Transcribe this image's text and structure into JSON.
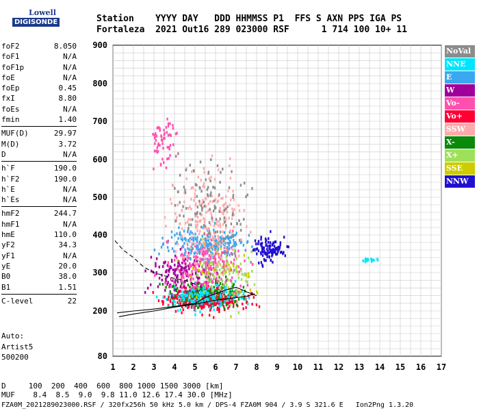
{
  "logo": {
    "top": "Lowell",
    "bottom": "DIGISONDE"
  },
  "header": {
    "line1": "Station    YYYY DAY   DDD HHMMSS P1  FFS S AXN PPS IGA PS",
    "line2": "Fortaleza  2021 Out16 289 023000 RSF      1 714 100 10+ 11"
  },
  "params": {
    "group1": [
      {
        "name": "foF2",
        "value": "8.050"
      },
      {
        "name": "foF1",
        "value": "N/A"
      },
      {
        "name": "foF1p",
        "value": "N/A"
      },
      {
        "name": "foE",
        "value": "N/A"
      },
      {
        "name": "foEp",
        "value": "0.45"
      },
      {
        "name": "fxI",
        "value": "8.80"
      },
      {
        "name": "foEs",
        "value": "N/A"
      },
      {
        "name": "fmin",
        "value": "1.40"
      }
    ],
    "group2": [
      {
        "name": "MUF(D)",
        "value": "29.97"
      },
      {
        "name": "M(D)",
        "value": "3.72"
      },
      {
        "name": "D",
        "value": "N/A"
      }
    ],
    "group3": [
      {
        "name": "h`F",
        "value": "190.0"
      },
      {
        "name": "h`F2",
        "value": "190.0"
      },
      {
        "name": "h`E",
        "value": "N/A"
      },
      {
        "name": "h`Es",
        "value": "N/A"
      }
    ],
    "group4": [
      {
        "name": "hmF2",
        "value": "244.7"
      },
      {
        "name": "hmF1",
        "value": "N/A"
      },
      {
        "name": "hmE",
        "value": "110.0"
      },
      {
        "name": "yF2",
        "value": "34.3"
      },
      {
        "name": "yF1",
        "value": "N/A"
      },
      {
        "name": "yE",
        "value": "20.0"
      },
      {
        "name": "B0",
        "value": "38.0"
      },
      {
        "name": "B1",
        "value": "1.51"
      }
    ],
    "group5": [
      {
        "name": "C-level",
        "value": "22"
      }
    ]
  },
  "auto": {
    "line1": "Auto:",
    "line2": "Artist5",
    "line3": "500200"
  },
  "legend": [
    {
      "label": "NoVal",
      "color": "#8c8c8c"
    },
    {
      "label": "NNE",
      "color": "#00e5ff"
    },
    {
      "label": "E",
      "color": "#3aa8f0"
    },
    {
      "label": "W",
      "color": "#a0009a"
    },
    {
      "label": "Vo-",
      "color": "#ff4fb0"
    },
    {
      "label": "Vo+",
      "color": "#ff0033"
    },
    {
      "label": "SSW",
      "color": "#ffaaaa"
    },
    {
      "label": "X-",
      "color": "#0a8a0a"
    },
    {
      "label": "X+",
      "color": "#9fe05a"
    },
    {
      "label": "SSE",
      "color": "#cccc00"
    },
    {
      "label": "NNW",
      "color": "#2010d0"
    }
  ],
  "footer": {
    "d_row": "D     100  200  400  600  800 1000 1500 3000 [km]",
    "muf_row": "MUF    8.4  8.5  9.0  9.8 11.0 12.6 17.4 30.0 [MHz]",
    "filename": "FZA0M_2021289023000.RSF / 320fx256h 50 kHz 5.0 km / DPS-4 FZA0M 904 / 3.9 S 321.6 E   Ion2Png 1.3.20"
  },
  "chart_data": {
    "type": "scatter",
    "title": "",
    "xlabel": "",
    "ylabel": "",
    "xlim": [
      1,
      17
    ],
    "ylim": [
      80,
      900
    ],
    "x_ticks": [
      1,
      2,
      3,
      4,
      5,
      6,
      7,
      8,
      9,
      10,
      11,
      12,
      13,
      14,
      15,
      16,
      17
    ],
    "y_ticks": [
      80,
      200,
      300,
      400,
      500,
      600,
      700,
      800,
      900
    ],
    "grid": true,
    "traces": [
      {
        "name": "profile",
        "style": "solid",
        "x": [
          1.2,
          2,
          3,
          4,
          5,
          5.5,
          6,
          6.5,
          7,
          7.5,
          8
        ],
        "y": [
          195,
          200,
          205,
          212,
          220,
          235,
          245,
          255,
          262,
          250,
          240
        ]
      },
      {
        "name": "lower",
        "style": "solid",
        "x": [
          1.3,
          2,
          3,
          4,
          5,
          6,
          7,
          7.5,
          7.9
        ],
        "y": [
          185,
          192,
          200,
          210,
          218,
          228,
          235,
          238,
          245
        ]
      },
      {
        "name": "dashed",
        "style": "dashed",
        "x": [
          1.1,
          1.5,
          2,
          2.5,
          3,
          3.5,
          4,
          4.5,
          5
        ],
        "y": [
          385,
          360,
          340,
          315,
          300,
          292,
          285,
          280,
          270
        ]
      }
    ],
    "clusters": [
      {
        "name": "Vo+",
        "cx": 5.5,
        "cy": 230,
        "sx": 1.6,
        "sy": 25,
        "n": 420
      },
      {
        "name": "X-",
        "cx": 5.6,
        "cy": 250,
        "sx": 1.6,
        "sy": 30,
        "n": 200
      },
      {
        "name": "NNE",
        "cx": 5.4,
        "cy": 235,
        "sx": 1.5,
        "sy": 25,
        "n": 160
      },
      {
        "name": "W",
        "cx": 4.5,
        "cy": 300,
        "sx": 1.3,
        "sy": 40,
        "n": 160
      },
      {
        "name": "Vo-",
        "cx": 5.5,
        "cy": 320,
        "sx": 1.5,
        "sy": 60,
        "n": 240
      },
      {
        "name": "E",
        "cx": 5.5,
        "cy": 380,
        "sx": 1.6,
        "sy": 30,
        "n": 200
      },
      {
        "name": "SSW",
        "cx": 5.6,
        "cy": 440,
        "sx": 1.4,
        "sy": 110,
        "n": 220
      },
      {
        "name": "NNW",
        "cx": 8.6,
        "cy": 360,
        "sx": 0.6,
        "sy": 30,
        "n": 110
      },
      {
        "name": "X+",
        "cx": 6.5,
        "cy": 300,
        "sx": 1.3,
        "sy": 60,
        "n": 90
      },
      {
        "name": "SSE",
        "cx": 6.2,
        "cy": 310,
        "sx": 1.6,
        "sy": 70,
        "n": 40
      },
      {
        "name": "NoVal",
        "cx": 5.8,
        "cy": 470,
        "sx": 1.5,
        "sy": 110,
        "n": 120
      },
      {
        "name": "Vo-",
        "cx": 3.5,
        "cy": 650,
        "sx": 0.5,
        "sy": 60,
        "n": 60
      },
      {
        "name": "NNE",
        "cx": 13.6,
        "cy": 333,
        "sx": 0.35,
        "sy": 4,
        "n": 18
      }
    ]
  }
}
